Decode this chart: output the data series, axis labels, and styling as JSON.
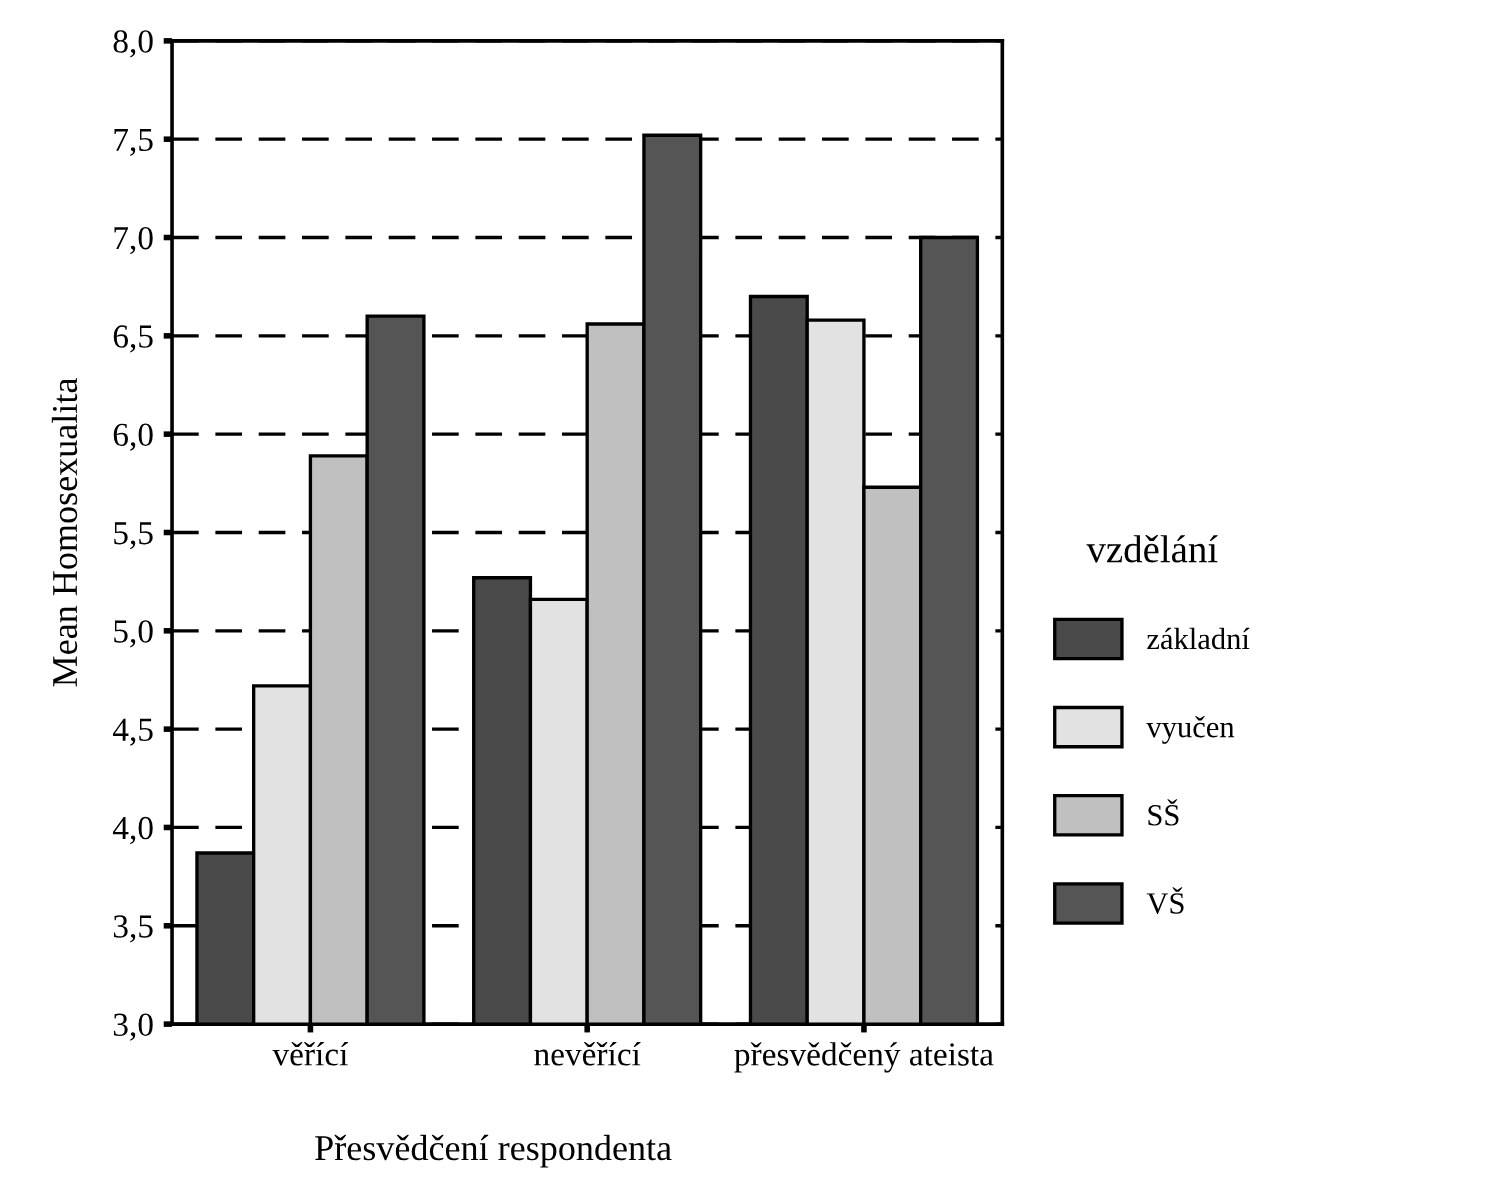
{
  "chart_data": {
    "type": "bar",
    "xlabel": "Přesvědčení respondenta",
    "ylabel": "Mean Homosexualita",
    "legend_title": "vzdělání",
    "categories": [
      "věřící",
      "nevěřící",
      "přesvědčený ateista"
    ],
    "series": [
      {
        "name": "základní",
        "color": "#4a4a4a",
        "values": [
          3.87,
          5.27,
          6.7
        ]
      },
      {
        "name": "vyučen",
        "color": "#e2e2e2",
        "values": [
          4.72,
          5.16,
          6.58
        ]
      },
      {
        "name": "SŠ",
        "color": "#c0c0c0",
        "values": [
          5.89,
          6.56,
          5.73
        ]
      },
      {
        "name": "VŠ",
        "color": "#555555",
        "values": [
          6.6,
          7.52,
          7.0
        ]
      }
    ],
    "ylim": [
      3,
      8
    ],
    "yticks": [
      {
        "value": 3,
        "label": "3,0"
      },
      {
        "value": 3.5,
        "label": "3,5"
      },
      {
        "value": 4,
        "label": "4,0"
      },
      {
        "value": 4.5,
        "label": "4,5"
      },
      {
        "value": 5,
        "label": "5,0"
      },
      {
        "value": 5.5,
        "label": "5,5"
      },
      {
        "value": 6,
        "label": "6,0"
      },
      {
        "value": 6.5,
        "label": "6,5"
      },
      {
        "value": 7,
        "label": "7,0"
      },
      {
        "value": 7.5,
        "label": "7,5"
      },
      {
        "value": 8,
        "label": "8,0"
      }
    ],
    "grid": "y",
    "legend": "right"
  }
}
